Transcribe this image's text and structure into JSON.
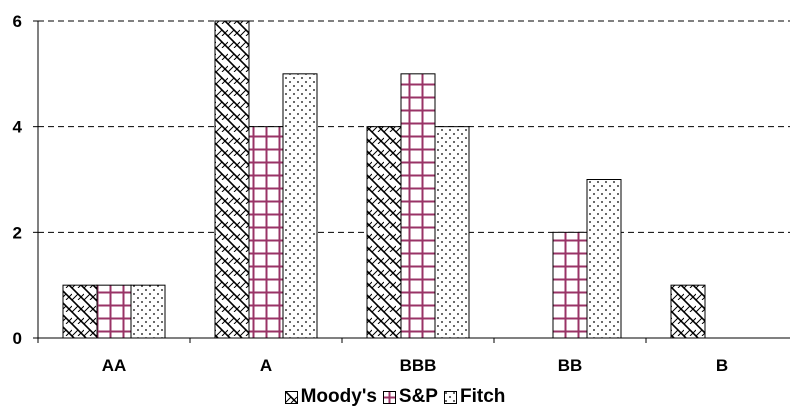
{
  "chart_data": {
    "type": "bar",
    "title": "",
    "xlabel": "",
    "ylabel": "",
    "categories": [
      "AA",
      "A",
      "BBB",
      "BB",
      "B"
    ],
    "ylim": [
      0,
      6
    ],
    "yticks": [
      0,
      2,
      4,
      6
    ],
    "ytick_labels": [
      "0",
      "2",
      "4",
      "6"
    ],
    "grid": "horizontal dashed",
    "legend_position": "bottom",
    "series": [
      {
        "name": "Moody's",
        "values": [
          1,
          6,
          4,
          0,
          1
        ],
        "pattern": "diagonal-weave",
        "color": "#000000"
      },
      {
        "name": "S&P",
        "values": [
          1,
          4,
          5,
          2,
          0
        ],
        "pattern": "grid",
        "color": "#993366"
      },
      {
        "name": "Fitch",
        "values": [
          1,
          5,
          4,
          3,
          0
        ],
        "pattern": "dots",
        "color": "#000000"
      }
    ]
  }
}
